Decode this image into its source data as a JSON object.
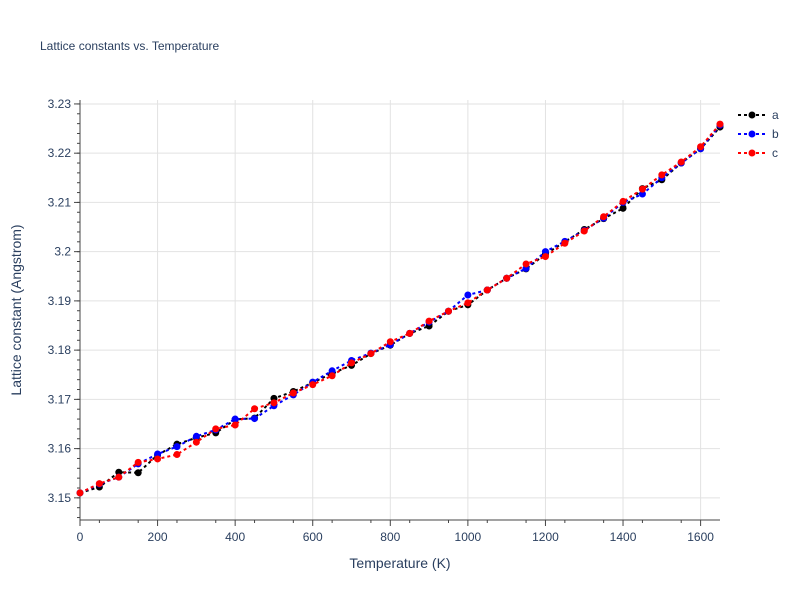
{
  "chart_data": {
    "type": "line",
    "title": "Lattice constants vs. Temperature",
    "xlabel": "Temperature (K)",
    "ylabel": "Lattice constant (Angstrom)",
    "xlim": [
      0,
      1650
    ],
    "ylim": [
      3.1455,
      3.2308
    ],
    "xticks": [
      0,
      200,
      400,
      600,
      800,
      1000,
      1200,
      1400,
      1600
    ],
    "xtick_labels": [
      "0",
      "200",
      "400",
      "600",
      "800",
      "1000",
      "1200",
      "1400",
      "1600"
    ],
    "yticks": [
      3.15,
      3.16,
      3.17,
      3.18,
      3.19,
      3.2,
      3.21,
      3.22,
      3.23
    ],
    "ytick_labels": [
      "3.15",
      "3.16",
      "3.17",
      "3.18",
      "3.19",
      "3.2",
      "3.21",
      "3.22",
      "3.23"
    ],
    "grid": true,
    "legend_position": "top-right",
    "x": [
      0,
      50,
      100,
      150,
      200,
      250,
      300,
      350,
      400,
      450,
      500,
      550,
      600,
      650,
      700,
      750,
      800,
      850,
      900,
      950,
      1000,
      1050,
      1100,
      1150,
      1200,
      1250,
      1300,
      1350,
      1400,
      1450,
      1500,
      1550,
      1600,
      1650
    ],
    "series": [
      {
        "name": "a",
        "color": "#000000",
        "values": [
          3.151,
          3.1522,
          3.1552,
          3.1551,
          3.1587,
          3.1609,
          3.1622,
          3.1632,
          3.1659,
          3.1662,
          3.1702,
          3.1716,
          3.1734,
          3.1753,
          3.1769,
          3.1793,
          3.181,
          3.1834,
          3.1849,
          3.1879,
          3.1892,
          3.1922,
          3.1946,
          3.1965,
          3.1995,
          3.202,
          3.2045,
          3.2067,
          3.2088,
          3.2128,
          3.2146,
          3.218,
          3.2209,
          3.2253
        ]
      },
      {
        "name": "b",
        "color": "#0000ff",
        "values": [
          3.151,
          3.1528,
          3.1542,
          3.1569,
          3.1589,
          3.1604,
          3.1625,
          3.1638,
          3.166,
          3.1661,
          3.1687,
          3.1709,
          3.1735,
          3.1758,
          3.1779,
          3.1794,
          3.1811,
          3.1834,
          3.1857,
          3.1879,
          3.1912,
          3.1922,
          3.1946,
          3.1966,
          3.2,
          3.2021,
          3.2043,
          3.2068,
          3.21,
          3.2117,
          3.215,
          3.218,
          3.2209,
          3.2257
        ]
      },
      {
        "name": "c",
        "color": "#ff0000",
        "values": [
          3.151,
          3.1529,
          3.1542,
          3.1572,
          3.1579,
          3.1588,
          3.1613,
          3.164,
          3.1648,
          3.1681,
          3.1693,
          3.1713,
          3.173,
          3.1748,
          3.1774,
          3.1793,
          3.1817,
          3.1834,
          3.1859,
          3.1879,
          3.1896,
          3.1922,
          3.1946,
          3.1975,
          3.199,
          3.2017,
          3.2042,
          3.2071,
          3.2102,
          3.2127,
          3.2156,
          3.2182,
          3.2213,
          3.2259
        ]
      }
    ]
  }
}
